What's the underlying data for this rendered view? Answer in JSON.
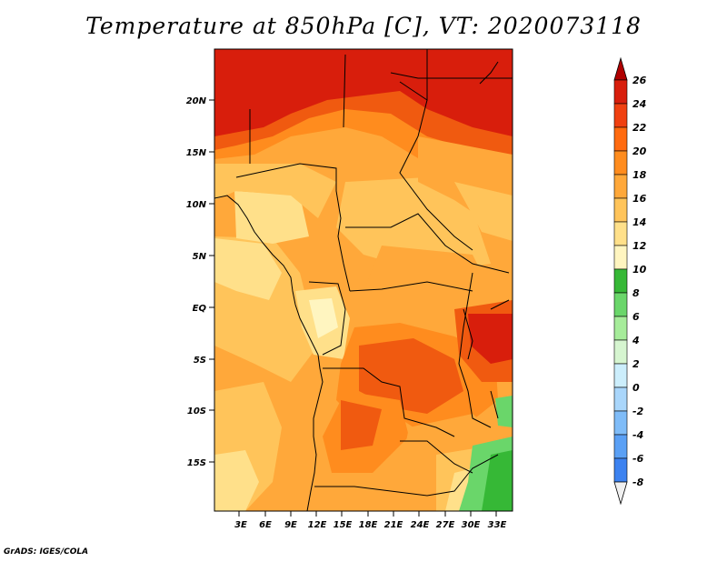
{
  "title": "Temperature at 850hPa [C], VT: 2020073118",
  "footer": "GrADS: IGES/COLA",
  "map": {
    "lat_labels": [
      "20N",
      "15N",
      "10N",
      "5N",
      "EQ",
      "5S",
      "10S",
      "15S"
    ],
    "lon_labels": [
      "3E",
      "6E",
      "9E",
      "12E",
      "15E",
      "18E",
      "21E",
      "24E",
      "27E",
      "30E",
      "33E"
    ]
  },
  "colorbar": {
    "labels": [
      "26",
      "24",
      "22",
      "20",
      "18",
      "16",
      "14",
      "12",
      "10",
      "8",
      "6",
      "4",
      "2",
      "0",
      "-2",
      "-4",
      "-6",
      "-8"
    ],
    "colors": [
      "#f0f0f0",
      "#1d28a8",
      "#1e46c8",
      "#2a64e0",
      "#3c82f0",
      "#5aa0f5",
      "#7fbcf8",
      "#a9d6fb",
      "#cceefc",
      "#d6f5d0",
      "#a6ec9a",
      "#6ad66a",
      "#36b836",
      "#fff5c0",
      "#ffe08a",
      "#ffc45a",
      "#ffa83a",
      "#ff8c1e",
      "#ff6a0f",
      "#f04010",
      "#d81e0c",
      "#b00000"
    ]
  },
  "colors": {
    "c_low": "#ffe08a",
    "c_mid": "#ffc45a",
    "c_midhigh": "#ffa83a",
    "c_high": "#ff8c1e",
    "c_hot": "#f05a10",
    "c_veryhot": "#d81e0c",
    "c_green": "#6ad66a",
    "c_darkgreen": "#36b836",
    "c_pale": "#fff5c0"
  }
}
